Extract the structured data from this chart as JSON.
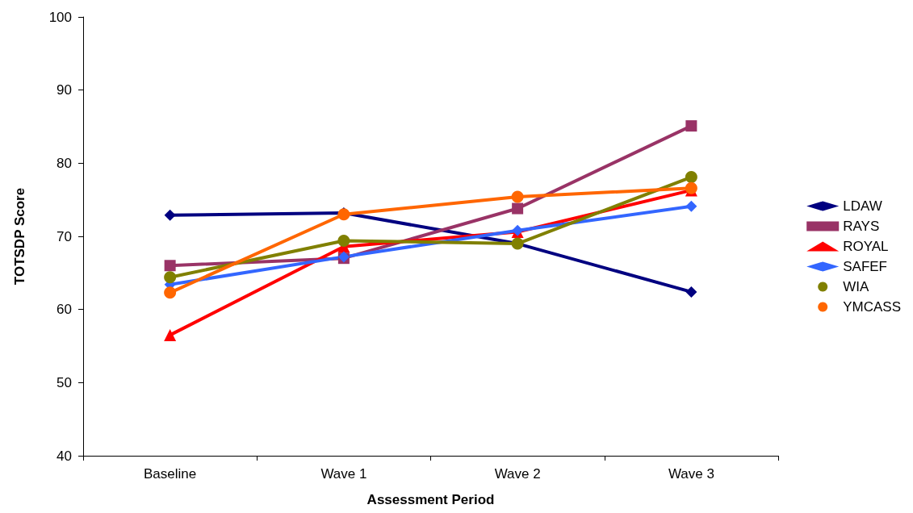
{
  "chart_data": {
    "type": "line",
    "xlabel": "Assessment Period",
    "ylabel": "TOTSDP Score",
    "categories": [
      "Baseline",
      "Wave 1",
      "Wave 2",
      "Wave 3"
    ],
    "ylim": [
      40,
      100
    ],
    "yticks": [
      40,
      50,
      60,
      70,
      80,
      90,
      100
    ],
    "grid": false,
    "legend": "right",
    "series": [
      {
        "name": "LDAW",
        "color": "#000080",
        "marker": "diamond",
        "values": [
          72.9,
          73.2,
          69.0,
          62.4
        ]
      },
      {
        "name": "RAYS",
        "color": "#993366",
        "marker": "square",
        "values": [
          66.0,
          67.0,
          73.8,
          85.1
        ]
      },
      {
        "name": "ROYAL",
        "color": "#ff0000",
        "marker": "triangle",
        "values": [
          56.5,
          68.6,
          70.6,
          76.3
        ]
      },
      {
        "name": "SAFEF",
        "color": "#3366ff",
        "marker": "diamond",
        "values": [
          63.4,
          67.2,
          70.8,
          74.1
        ]
      },
      {
        "name": "WIA",
        "color": "#808000",
        "marker": "circle",
        "values": [
          64.4,
          69.4,
          69.0,
          78.1
        ]
      },
      {
        "name": "YMCASS",
        "color": "#ff6600",
        "marker": "circle",
        "values": [
          62.3,
          73.0,
          75.4,
          76.6
        ]
      }
    ]
  }
}
